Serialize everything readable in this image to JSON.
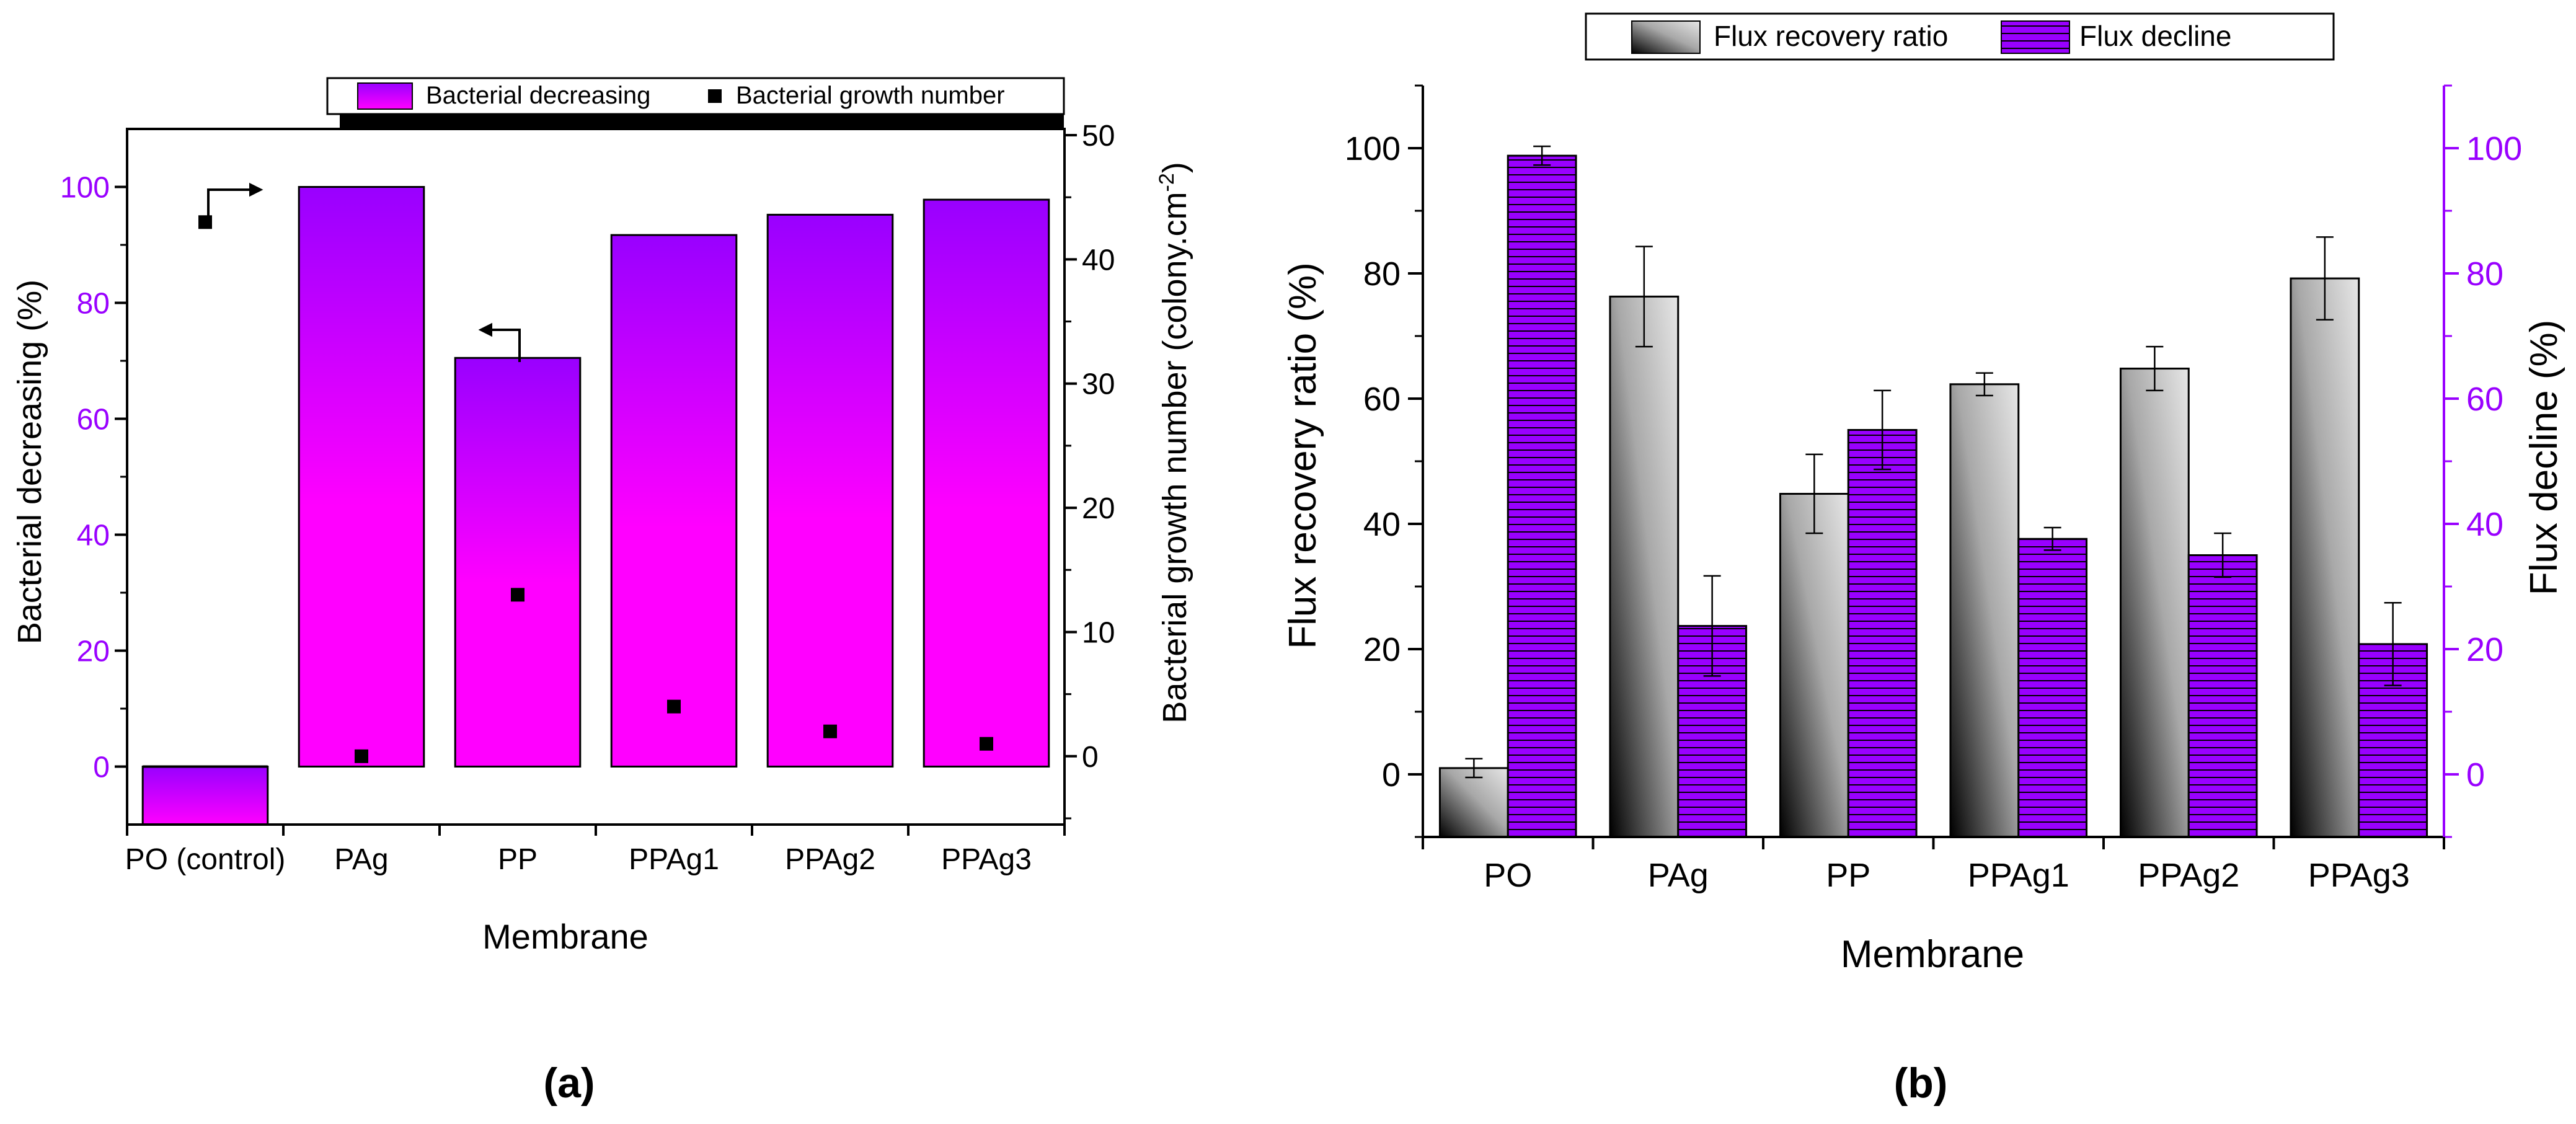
{
  "colors": {
    "axis": "#000000",
    "purple_axis": "#9900ff",
    "bar_grad_top": "#9900ff",
    "bar_grad_bottom": "#ff00ff",
    "flux_decline": "#9900ff",
    "frr_grad_light": "#d9d9d9",
    "frr_grad_dark": "#000000"
  },
  "chart_data": [
    {
      "panel": "a",
      "panel_label": "(a)",
      "type": "bar",
      "xlabel": "Membrane",
      "categories": [
        "PO (control)",
        "PAg",
        "PP",
        "PPAg1",
        "PPAg2",
        "PPAg3"
      ],
      "left_axis": {
        "label": "Bacterial decreasing (%)",
        "ylim": [
          -10,
          110
        ],
        "ticks": [
          0,
          20,
          40,
          60,
          80,
          100
        ],
        "tick_labels": [
          "0",
          "20",
          "40",
          "60",
          "80",
          "100"
        ]
      },
      "right_axis": {
        "label": "Bacterial growth number (colony.cm",
        "label_sup": "-2",
        "label_tail": ")",
        "ylim": [
          -5.5,
          50.5
        ],
        "ticks": [
          0,
          10,
          20,
          30,
          40,
          50
        ],
        "tick_labels": [
          "0",
          "10",
          "20",
          "30",
          "40",
          "50"
        ]
      },
      "legend": {
        "position": "top",
        "entries": [
          "Bacterial decreasing",
          "Bacterial growth number"
        ]
      },
      "series": [
        {
          "name": "Bacterial decreasing",
          "type": "bar",
          "axis": "left",
          "values": [
            0,
            100,
            70.5,
            91.7,
            95.2,
            97.8
          ]
        },
        {
          "name": "Bacterial growth number",
          "type": "scatter",
          "axis": "right",
          "values": [
            43,
            0,
            13,
            4,
            2,
            1
          ]
        }
      ]
    },
    {
      "panel": "b",
      "panel_label": "(b)",
      "type": "bar",
      "xlabel": "Membrane",
      "categories": [
        "PO",
        "PAg",
        "PP",
        "PPAg1",
        "PPAg2",
        "PPAg3"
      ],
      "left_axis": {
        "label": "Flux recovery ratio (%)",
        "ylim": [
          -10,
          110
        ],
        "ticks": [
          0,
          20,
          40,
          60,
          80,
          100
        ],
        "tick_labels": [
          "0",
          "20",
          "40",
          "60",
          "80",
          "100"
        ]
      },
      "right_axis": {
        "label": "Flux decline (%)",
        "ylim": [
          -10,
          110
        ],
        "ticks": [
          0,
          20,
          40,
          60,
          80,
          100
        ],
        "tick_labels": [
          "0",
          "20",
          "40",
          "60",
          "80",
          "100"
        ]
      },
      "legend": {
        "position": "top",
        "entries": [
          "Flux recovery ratio",
          "Flux decline"
        ]
      },
      "series": [
        {
          "name": "Flux recovery ratio",
          "type": "bar",
          "axis": "left",
          "values": [
            1,
            76.3,
            44.8,
            62.3,
            64.8,
            79.2
          ],
          "errors": [
            1.5,
            8,
            6.3,
            1.8,
            3.5,
            6.6
          ]
        },
        {
          "name": "Flux decline",
          "type": "bar",
          "axis": "right",
          "values": [
            98.8,
            23.7,
            55,
            37.6,
            35,
            20.8
          ],
          "errors": [
            1.5,
            8,
            6.3,
            1.8,
            3.5,
            6.6
          ]
        }
      ]
    }
  ]
}
